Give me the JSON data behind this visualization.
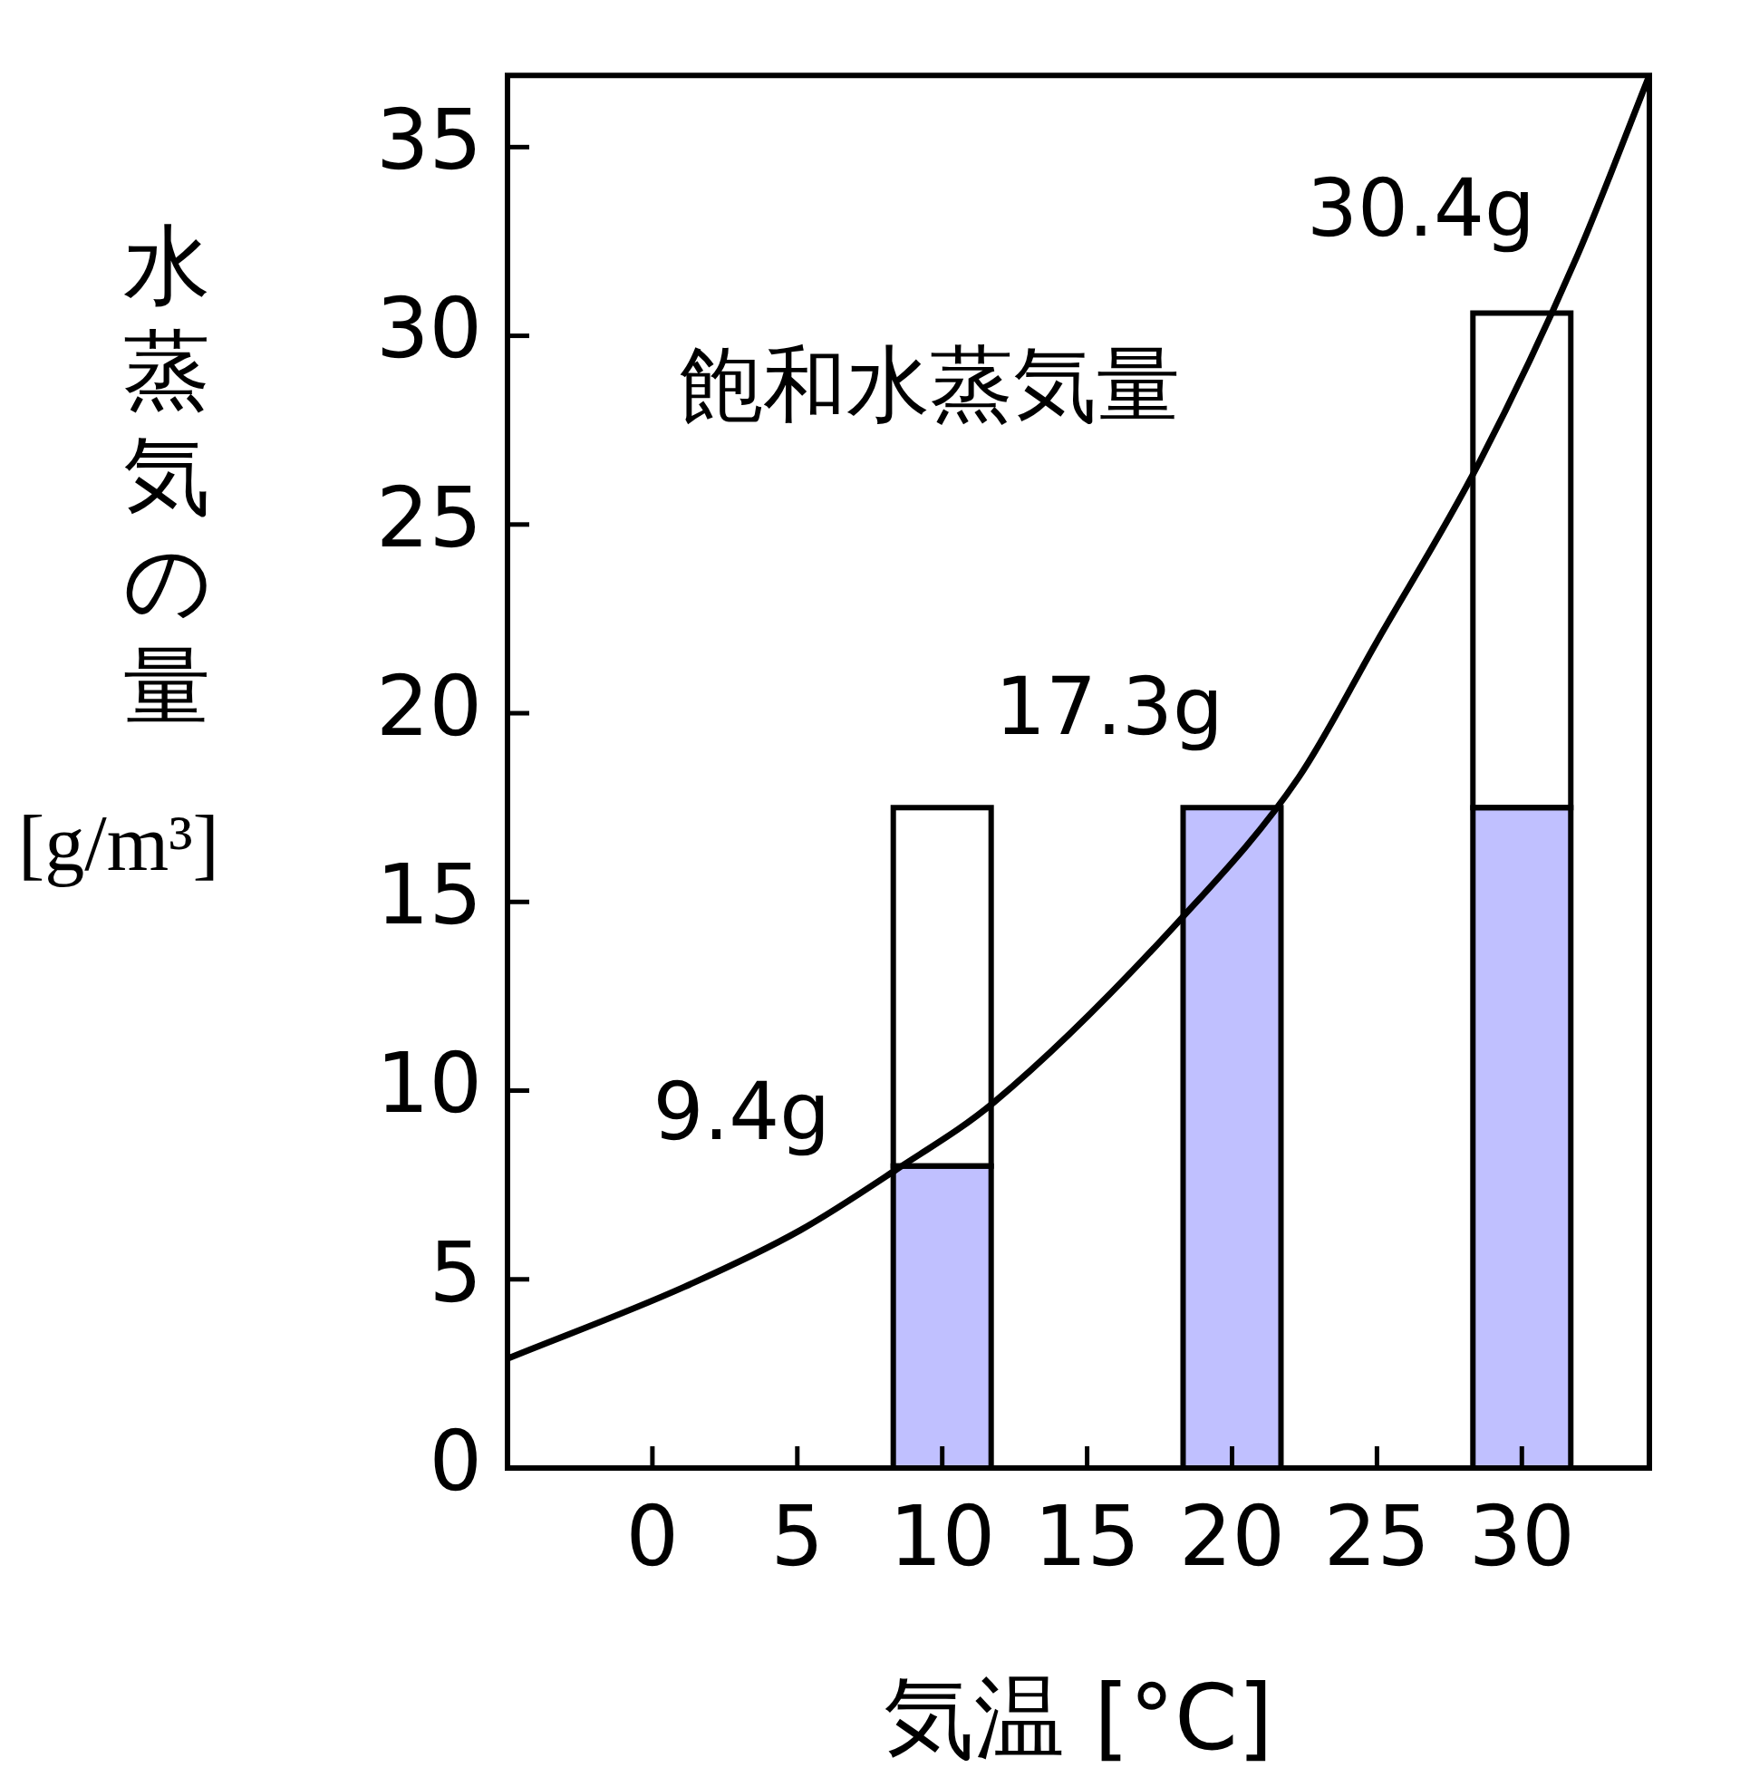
{
  "chart_data": {
    "type": "bar",
    "xlabel": "気温 [°C]",
    "ylabel": "水蒸気の量 [g/m³]",
    "xlim": [
      -5,
      34.4
    ],
    "xticks": [
      0,
      5,
      10,
      15,
      20,
      25,
      30
    ],
    "ylim": [
      0,
      36.9
    ],
    "yticks": [
      0,
      5,
      10,
      15,
      20,
      25,
      30,
      35
    ],
    "stacked": true,
    "x": [
      10,
      20,
      30
    ],
    "series": [
      {
        "color": "#c0c0ff",
        "values": [
          8.0,
          17.5,
          17.5
        ]
      },
      {
        "color": "#ffffff",
        "values": [
          9.5,
          null,
          13.1
        ]
      },
      {
        "type": "line",
        "name": "飽和水蒸気量",
        "color": "#000000",
        "x": [
          -5,
          1.1,
          5.1,
          8.4,
          11.8,
          18.3,
          22.3,
          25,
          28.5,
          31.9,
          34.4
        ],
        "values": [
          2.9,
          4.8,
          6.3,
          7.9,
          9.7,
          14.6,
          18.3,
          21.9,
          26.6,
          32.1,
          36.9
        ]
      }
    ],
    "annotations": [
      "9.4g",
      "17.3g",
      "30.4g"
    ]
  }
}
